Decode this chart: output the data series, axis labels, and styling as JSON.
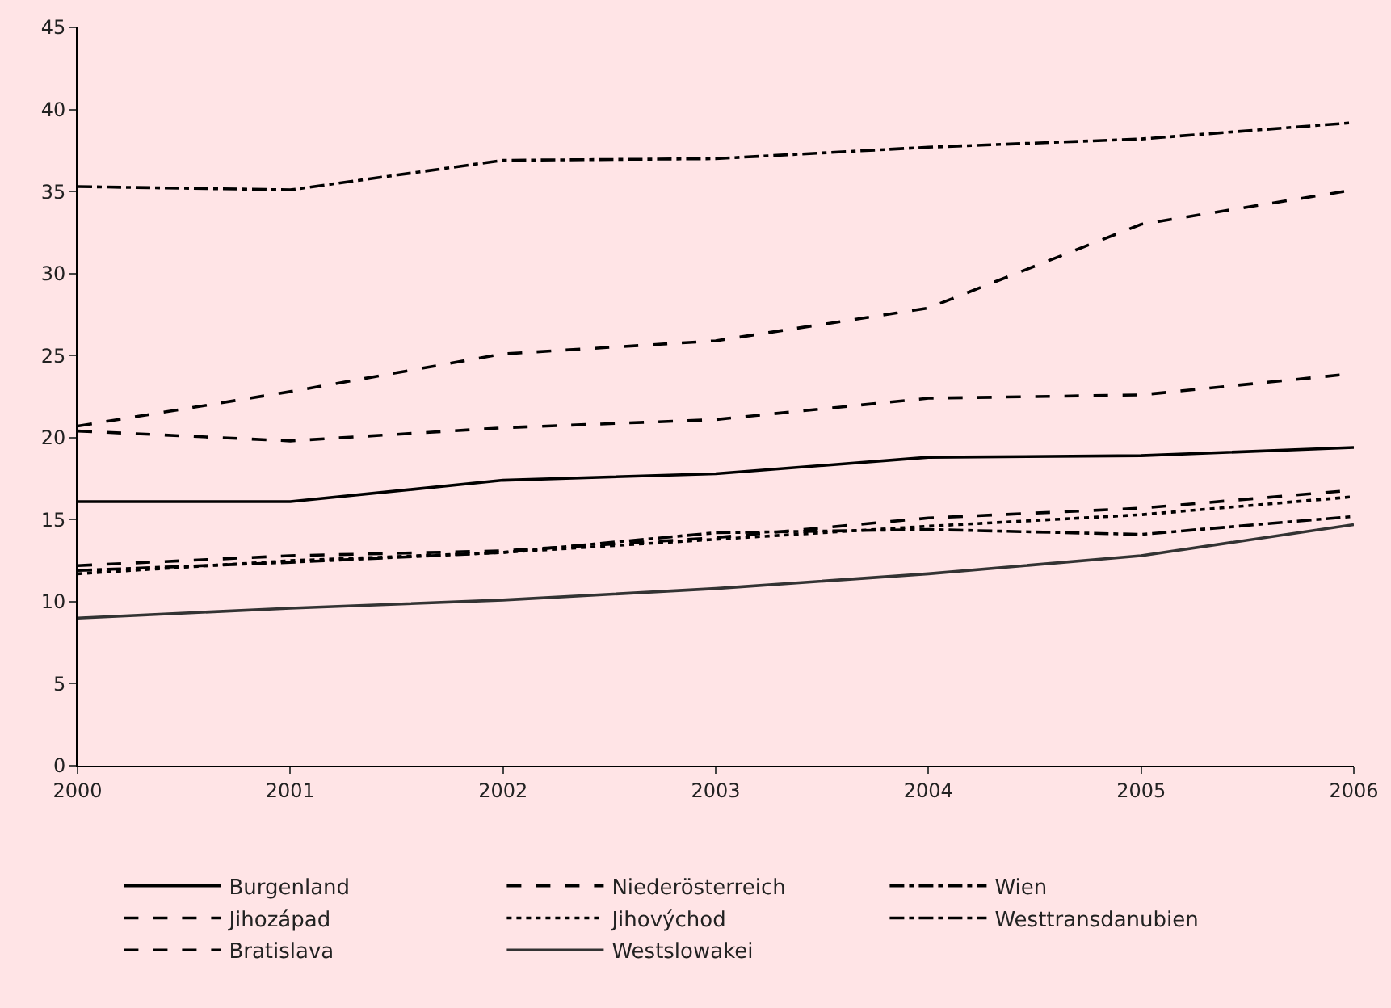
{
  "chart_data": {
    "type": "line",
    "x": [
      2000,
      2001,
      2002,
      2003,
      2004,
      2005,
      2006
    ],
    "xlim": [
      2000,
      2006
    ],
    "xticks": [
      2000,
      2001,
      2002,
      2003,
      2004,
      2005,
      2006
    ],
    "ylim": [
      0,
      45
    ],
    "yticks": [
      0,
      5,
      10,
      15,
      20,
      25,
      30,
      35,
      40,
      45
    ],
    "grid": false,
    "legend": "bottom",
    "marker": "none",
    "series": [
      {
        "name": "Burgenland",
        "color": "#000000",
        "line_style": "solid",
        "values": [
          16.1,
          16.1,
          17.4,
          17.8,
          18.8,
          18.9,
          19.4
        ]
      },
      {
        "name": "Niederösterreich",
        "color": "#000000",
        "line_style": "dashed",
        "values": [
          20.4,
          19.8,
          20.6,
          21.1,
          22.4,
          22.6,
          23.9
        ]
      },
      {
        "name": "Wien",
        "color": "#000000",
        "line_style": "dashdot",
        "values": [
          35.3,
          35.1,
          36.9,
          37.0,
          37.7,
          38.2,
          39.2
        ]
      },
      {
        "name": "Jihozápad",
        "color": "#000000",
        "line_style": "dashed",
        "values": [
          12.2,
          12.8,
          13.1,
          13.9,
          15.1,
          15.7,
          16.8
        ]
      },
      {
        "name": "Jihovýchod",
        "color": "#000000",
        "line_style": "dotted",
        "values": [
          11.7,
          12.5,
          13.0,
          13.8,
          14.6,
          15.3,
          16.4
        ]
      },
      {
        "name": "Westtransdanubien",
        "color": "#000000",
        "line_style": "dashdot",
        "values": [
          11.9,
          12.4,
          13.0,
          14.2,
          14.4,
          14.1,
          15.2
        ]
      },
      {
        "name": "Bratislava",
        "color": "#000000",
        "line_style": "dashed",
        "values": [
          20.7,
          22.8,
          25.1,
          25.9,
          27.9,
          33.0,
          35.1
        ]
      },
      {
        "name": "Westslowakei",
        "color": "#333333",
        "line_style": "solid",
        "values": [
          9.0,
          9.6,
          10.1,
          10.8,
          11.7,
          12.8,
          14.7
        ]
      }
    ]
  }
}
